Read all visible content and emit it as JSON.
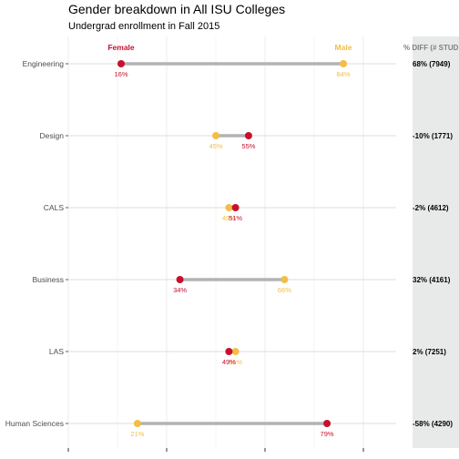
{
  "chart_data": {
    "type": "dumbbell",
    "title": "Gender breakdown in All ISU Colleges",
    "subtitle": "Undergrad enrollment in Fall 2015",
    "legend": {
      "female": "Female",
      "male": "Male"
    },
    "diff_header": "% DIFF (# STUDENTS)",
    "xlim": [
      0.1,
      0.95
    ],
    "categories": [
      "Engineering",
      "Design",
      "CALS",
      "Business",
      "LAS",
      "Human Sciences"
    ],
    "rows": [
      {
        "category": "Engineering",
        "female": 0.16,
        "male": 0.84,
        "female_label": "16%",
        "male_label": "84%",
        "diff": "68% (7949)"
      },
      {
        "category": "Design",
        "female": 0.55,
        "male": 0.45,
        "female_label": "55%",
        "male_label": "45%",
        "diff": "-10% (1771)"
      },
      {
        "category": "CALS",
        "female": 0.51,
        "male": 0.49,
        "female_label": "51%",
        "male_label": "49%",
        "diff": "-2% (4612)"
      },
      {
        "category": "Business",
        "female": 0.34,
        "male": 0.66,
        "female_label": "34%",
        "male_label": "66%",
        "diff": "32% (4161)"
      },
      {
        "category": "LAS",
        "female": 0.49,
        "male": 0.51,
        "female_label": "49%",
        "male_label": "51%",
        "diff": "2% (7251)"
      },
      {
        "category": "Human Sciences",
        "female": 0.79,
        "male": 0.21,
        "female_label": "79%",
        "male_label": "21%",
        "diff": "-58% (4290)"
      }
    ],
    "colors": {
      "female": "#c8102e",
      "male": "#f1be48",
      "segment": "#b3b3b3",
      "diff_panel": "#e8eaea",
      "grid": "#ebebeb"
    },
    "grid": true,
    "legend_placement": "top"
  }
}
